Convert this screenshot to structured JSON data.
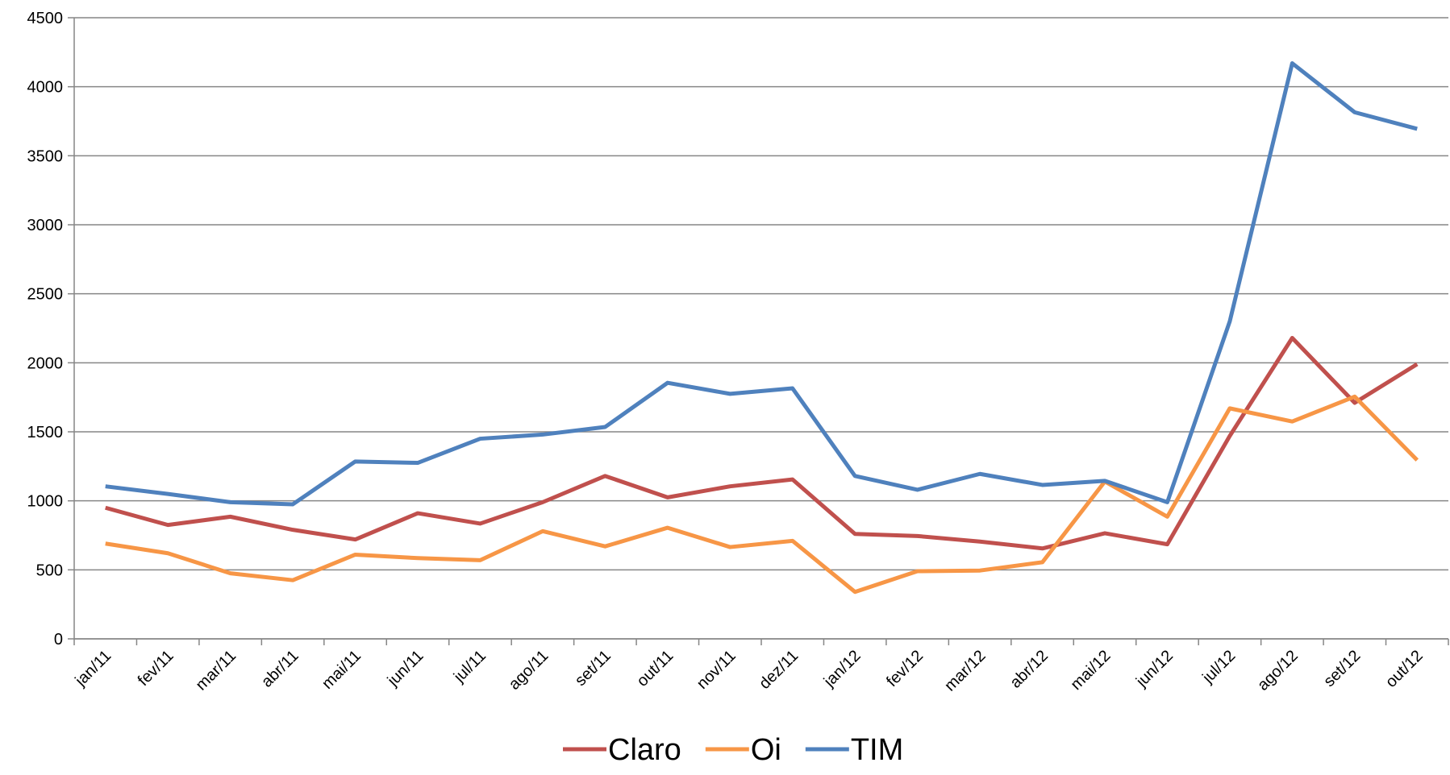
{
  "chart_data": {
    "type": "line",
    "categories": [
      "jan/11",
      "fev/11",
      "mar/11",
      "abr/11",
      "mai/11",
      "jun/11",
      "jul/11",
      "ago/11",
      "set/11",
      "out/11",
      "nov/11",
      "dez/11",
      "jan/12",
      "fev/12",
      "mar/12",
      "abr/12",
      "mai/12",
      "jun/12",
      "jul/12",
      "ago/12",
      "set/12",
      "out/12"
    ],
    "series": [
      {
        "name": "Claro",
        "color": "#c0504d",
        "values": [
          950,
          825,
          885,
          790,
          720,
          910,
          835,
          990,
          1180,
          1025,
          1105,
          1155,
          760,
          745,
          705,
          655,
          765,
          685,
          1470,
          2180,
          1710,
          1990
        ]
      },
      {
        "name": "Oi",
        "color": "#f79646",
        "values": [
          690,
          620,
          475,
          425,
          610,
          585,
          570,
          780,
          670,
          805,
          665,
          710,
          340,
          490,
          495,
          555,
          1140,
          885,
          1670,
          1575,
          1755,
          1295
        ]
      },
      {
        "name": "TIM",
        "color": "#4f81bd",
        "values": [
          1105,
          1050,
          990,
          975,
          1285,
          1275,
          1450,
          1480,
          1535,
          1855,
          1775,
          1815,
          1180,
          1080,
          1195,
          1115,
          1145,
          990,
          2300,
          4170,
          3815,
          3695
        ]
      }
    ],
    "ylim": [
      0,
      4500
    ],
    "yticks": [
      0,
      500,
      1000,
      1500,
      2000,
      2500,
      3000,
      3500,
      4000,
      4500
    ],
    "grid": true,
    "legend": "bottom"
  }
}
